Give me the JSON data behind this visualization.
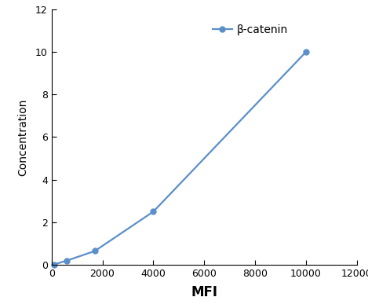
{
  "x": [
    100,
    600,
    1700,
    4000,
    10000
  ],
  "y": [
    0.02,
    0.2,
    0.65,
    2.5,
    10.0
  ],
  "line_color": "#5b8fc9",
  "marker": "o",
  "marker_size": 5,
  "legend_label": "β-catenin",
  "xlabel": "MFI",
  "ylabel": "Concentration",
  "xlim": [
    0,
    12000
  ],
  "ylim": [
    0,
    12
  ],
  "xticks": [
    0,
    2000,
    4000,
    6000,
    8000,
    10000,
    12000
  ],
  "yticks": [
    0,
    2,
    4,
    6,
    8,
    10,
    12
  ],
  "xlabel_fontsize": 12,
  "ylabel_fontsize": 10,
  "tick_fontsize": 9,
  "legend_fontsize": 10,
  "background_color": "#ffffff"
}
